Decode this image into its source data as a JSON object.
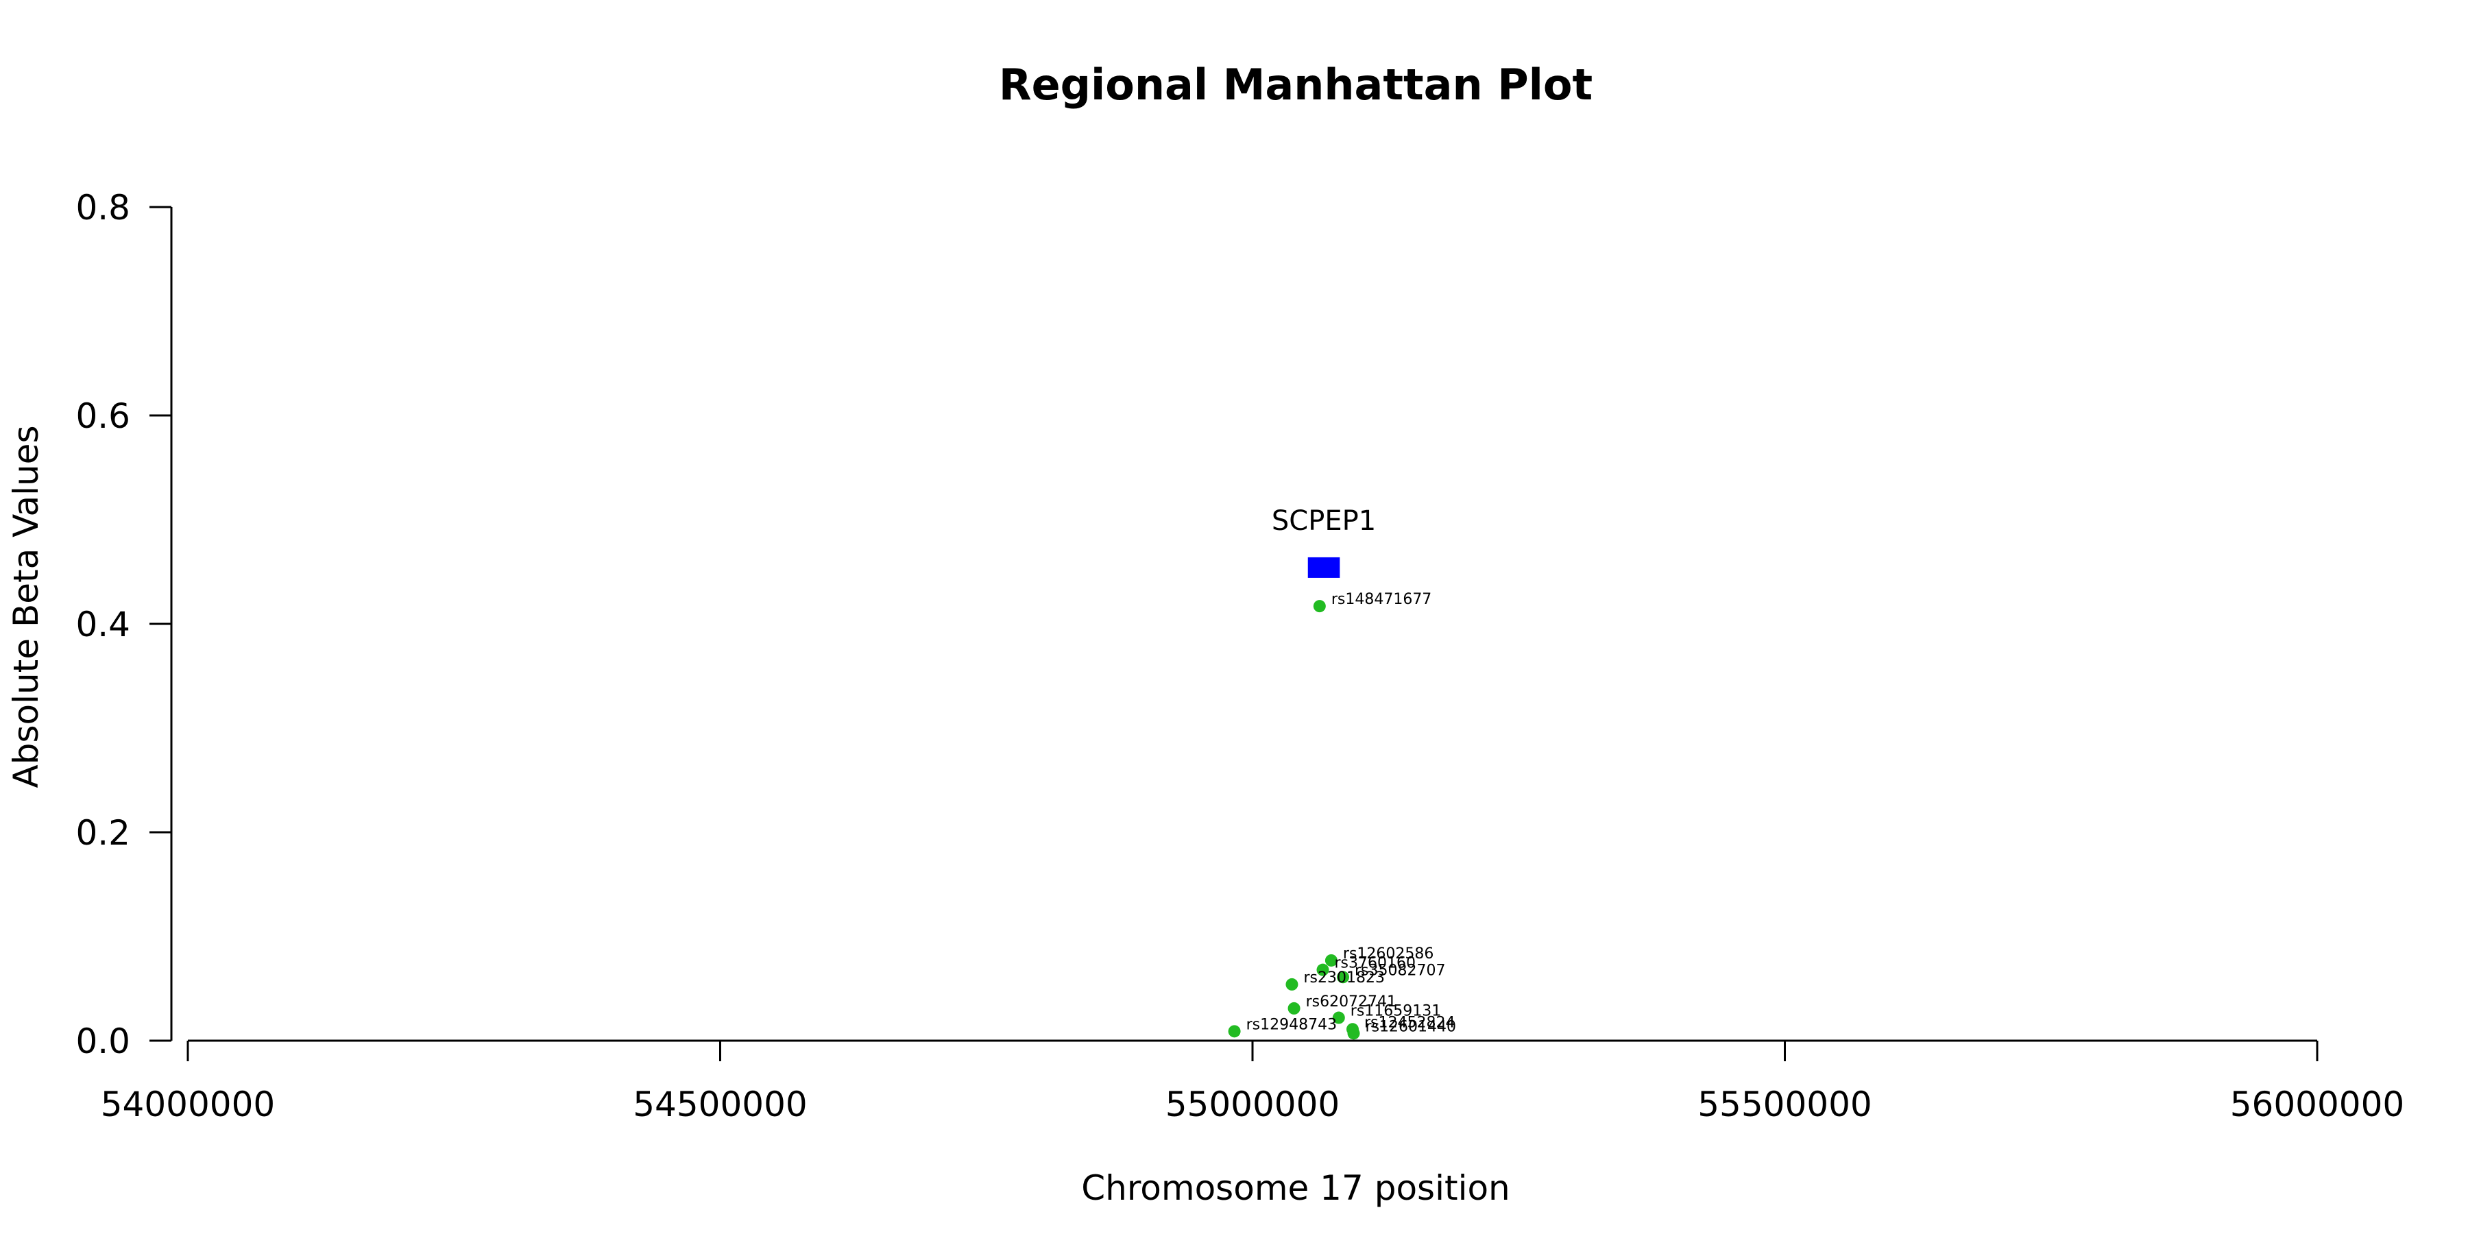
{
  "chart_data": {
    "type": "scatter",
    "title": "Regional Manhattan Plot",
    "xlabel": "Chromosome 17 position",
    "ylabel": "Absolute Beta Values",
    "xlim": [
      54000000,
      56000000
    ],
    "ylim": [
      0,
      0.8
    ],
    "xticks": [
      54000000,
      54500000,
      55000000,
      55500000,
      56000000
    ],
    "xtick_labels": [
      "54000000",
      "54500000",
      "55000000",
      "55500000",
      "56000000"
    ],
    "yticks": [
      0,
      0.2,
      0.4,
      0.6,
      0.8
    ],
    "ytick_labels": [
      "0.0",
      "0.2",
      "0.4",
      "0.6",
      "0.8"
    ],
    "grid": false,
    "point_color": "#22bb22",
    "gene_color": "#0000ff",
    "gene": {
      "name": "SCPEP1",
      "start": 55052000,
      "end": 55082000,
      "y": 0.454
    },
    "points": [
      {
        "id": "rs148471677",
        "x": 55063000,
        "y": 0.417
      },
      {
        "id": "rs12602586",
        "x": 55074000,
        "y": 0.077
      },
      {
        "id": "rs3760160",
        "x": 55066000,
        "y": 0.068
      },
      {
        "id": "rs35082707",
        "x": 55085000,
        "y": 0.061
      },
      {
        "id": "rs2301823",
        "x": 55037000,
        "y": 0.054
      },
      {
        "id": "rs62072741",
        "x": 55039000,
        "y": 0.031
      },
      {
        "id": "rs11659131",
        "x": 55081000,
        "y": 0.022
      },
      {
        "id": "rs12948743",
        "x": 54983000,
        "y": 0.009
      },
      {
        "id": "rs12452824",
        "x": 55094000,
        "y": 0.011
      },
      {
        "id": "rs12601440",
        "x": 55095000,
        "y": 0.007
      }
    ]
  }
}
